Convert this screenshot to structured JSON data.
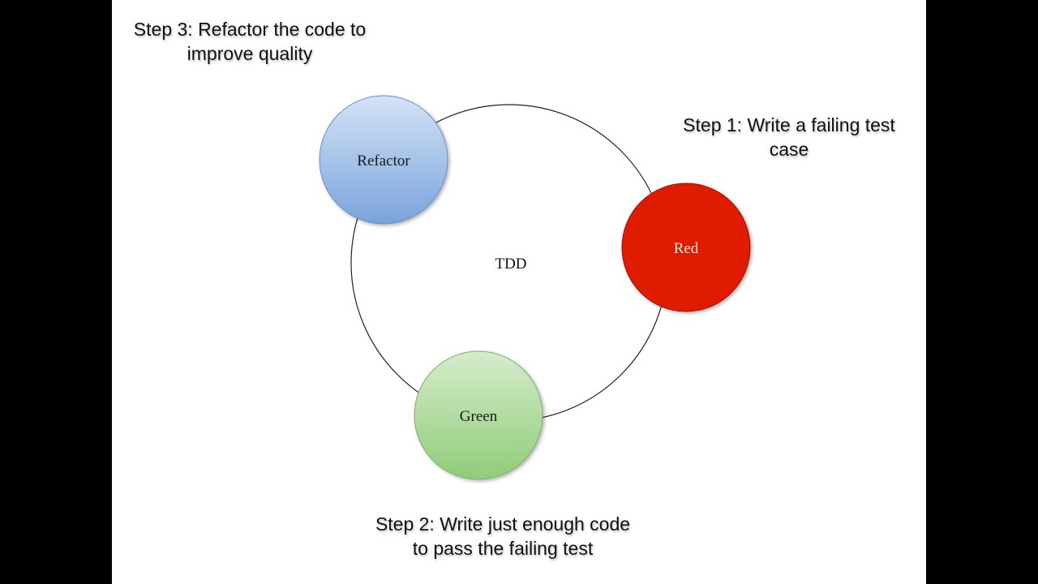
{
  "diagram": {
    "center_label": "TDD",
    "nodes": [
      {
        "label": "Red",
        "color": "#e01a00",
        "text_color": "#fbe8e0"
      },
      {
        "label": "Green",
        "color_top": "#d6ebcc",
        "color_bottom": "#8fcc78",
        "text_color": "#1a1a1a"
      },
      {
        "label": "Refactor",
        "color_top": "#d4e3f7",
        "color_bottom": "#7aa3dc",
        "text_color": "#1a1a1a"
      }
    ],
    "steps": [
      {
        "line1": "Step 1: Write a failing test",
        "line2": "case"
      },
      {
        "line1": "Step 2: Write just enough code",
        "line2": "to pass the failing test"
      },
      {
        "line1": "Step 3: Refactor the code to",
        "line2": "improve quality"
      }
    ]
  }
}
